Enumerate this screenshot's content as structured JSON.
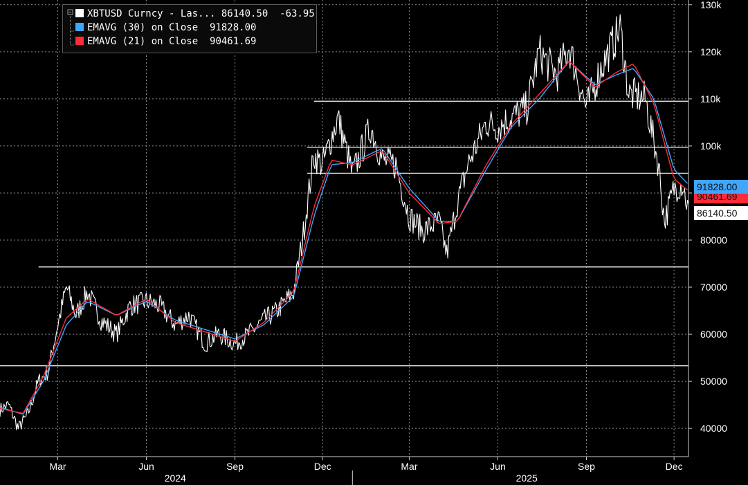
{
  "legend": {
    "items": [
      {
        "label": "XBTUSD Curncy - Las...",
        "value": "86140.50",
        "change": "-63.95",
        "color": "#ffffff"
      },
      {
        "label": "EMAVG (30)  on Close",
        "value": "91828.00",
        "color": "#3ea6ff"
      },
      {
        "label": "EMAVG (21)  on Close",
        "value": "90461.69",
        "color": "#ff2a3a"
      }
    ]
  },
  "tags": {
    "ema30": "91828.00",
    "ema21": "90461.69",
    "last": "86140.50"
  },
  "chart_data": {
    "type": "line",
    "title": "",
    "xlabel": "",
    "ylabel": "",
    "ylim": [
      34000,
      131000
    ],
    "y_ticks": [
      {
        "value": 40000,
        "label": "40000"
      },
      {
        "value": 50000,
        "label": "50000"
      },
      {
        "value": 60000,
        "label": "60000"
      },
      {
        "value": 70000,
        "label": "70000"
      },
      {
        "value": 80000,
        "label": "80000"
      },
      {
        "value": 90000,
        "label": "90000"
      },
      {
        "value": 100000,
        "label": "100k"
      },
      {
        "value": 110000,
        "label": "110k"
      },
      {
        "value": 120000,
        "label": "120k"
      },
      {
        "value": 130000,
        "label": "130k"
      }
    ],
    "x_range": [
      "2024-01-01",
      "2025-12-16"
    ],
    "x_ticks": [
      {
        "date": "2024-03-01",
        "label": "Mar"
      },
      {
        "date": "2024-06-01",
        "label": "Jun"
      },
      {
        "date": "2024-09-01",
        "label": "Sep"
      },
      {
        "date": "2024-12-01",
        "label": "Dec"
      },
      {
        "date": "2025-03-01",
        "label": "Mar"
      },
      {
        "date": "2025-06-01",
        "label": "Jun"
      },
      {
        "date": "2025-09-01",
        "label": "Sep"
      },
      {
        "date": "2025-12-01",
        "label": "Dec"
      }
    ],
    "year_labels": [
      {
        "date": "2024-07-01",
        "label": "2024"
      },
      {
        "date": "2025-07-01",
        "label": "2025"
      }
    ],
    "year_separator": "2025-01-01",
    "grid": true,
    "legend_position": "top-left",
    "horizontal_levels": [
      {
        "value": 53300,
        "from": "2024-01-01"
      },
      {
        "value": 74300,
        "from": "2024-02-10"
      },
      {
        "value": 94200,
        "from": "2024-11-15"
      },
      {
        "value": 99700,
        "from": "2024-11-15"
      },
      {
        "value": 109500,
        "from": "2024-11-22"
      }
    ],
    "series": [
      {
        "name": "XBTUSD Curncy - Las...",
        "color": "#ffffff",
        "x": [
          "2024-01-01",
          "2024-01-10",
          "2024-01-20",
          "2024-01-30",
          "2024-02-10",
          "2024-02-20",
          "2024-03-01",
          "2024-03-10",
          "2024-03-20",
          "2024-04-01",
          "2024-04-15",
          "2024-05-01",
          "2024-05-15",
          "2024-06-01",
          "2024-06-15",
          "2024-07-01",
          "2024-07-15",
          "2024-08-01",
          "2024-08-15",
          "2024-09-01",
          "2024-09-15",
          "2024-10-01",
          "2024-10-15",
          "2024-11-01",
          "2024-11-10",
          "2024-11-22",
          "2024-12-01",
          "2024-12-17",
          "2025-01-01",
          "2025-01-20",
          "2025-02-01",
          "2025-02-15",
          "2025-03-01",
          "2025-03-15",
          "2025-04-01",
          "2025-04-09",
          "2025-04-20",
          "2025-05-01",
          "2025-05-20",
          "2025-06-01",
          "2025-06-15",
          "2025-07-01",
          "2025-07-14",
          "2025-08-01",
          "2025-08-14",
          "2025-09-01",
          "2025-09-15",
          "2025-10-06",
          "2025-10-15",
          "2025-11-01",
          "2025-11-15",
          "2025-11-21",
          "2025-12-01",
          "2025-12-10",
          "2025-12-16"
        ],
        "values": [
          44000,
          45000,
          40000,
          43000,
          50000,
          52000,
          62000,
          70000,
          64000,
          69000,
          63000,
          60000,
          66000,
          67000,
          66000,
          62000,
          64000,
          58000,
          60000,
          58000,
          60000,
          63000,
          65000,
          69000,
          80000,
          98000,
          96000,
          106000,
          94000,
          104000,
          97000,
          96000,
          85000,
          82000,
          84000,
          77000,
          88000,
          96000,
          105000,
          104000,
          106000,
          108000,
          120000,
          115000,
          121000,
          108000,
          116000,
          125000,
          111000,
          110000,
          96000,
          84000,
          91000,
          92000,
          86140
        ]
      },
      {
        "name": "EMAVG (30)  on Close",
        "color": "#3ea6ff",
        "x": [
          "2024-01-01",
          "2024-01-25",
          "2024-02-15",
          "2024-03-10",
          "2024-04-01",
          "2024-05-01",
          "2024-06-01",
          "2024-07-01",
          "2024-08-01",
          "2024-09-01",
          "2024-10-01",
          "2024-11-01",
          "2024-11-22",
          "2024-12-10",
          "2025-01-01",
          "2025-02-01",
          "2025-03-01",
          "2025-04-01",
          "2025-04-20",
          "2025-05-20",
          "2025-06-15",
          "2025-07-14",
          "2025-08-14",
          "2025-09-10",
          "2025-10-01",
          "2025-10-20",
          "2025-11-10",
          "2025-12-01",
          "2025-12-16"
        ],
        "values": [
          44500,
          43000,
          50000,
          62000,
          67000,
          64000,
          67000,
          63000,
          61000,
          59000,
          62000,
          68000,
          85000,
          96000,
          96500,
          99500,
          91000,
          84000,
          84000,
          95000,
          104000,
          110000,
          118000,
          113000,
          115000,
          116500,
          110000,
          95000,
          91828
        ]
      },
      {
        "name": "EMAVG (21)  on Close",
        "color": "#ff2a3a",
        "x": [
          "2024-01-01",
          "2024-01-25",
          "2024-02-15",
          "2024-03-10",
          "2024-04-01",
          "2024-05-01",
          "2024-06-01",
          "2024-07-01",
          "2024-08-01",
          "2024-09-01",
          "2024-10-01",
          "2024-11-01",
          "2024-11-22",
          "2024-12-10",
          "2025-01-01",
          "2025-02-01",
          "2025-03-01",
          "2025-04-01",
          "2025-04-20",
          "2025-05-20",
          "2025-06-15",
          "2025-07-14",
          "2025-08-14",
          "2025-09-10",
          "2025-10-01",
          "2025-10-20",
          "2025-11-10",
          "2025-12-01",
          "2025-12-16"
        ],
        "values": [
          44200,
          43200,
          51000,
          63500,
          67500,
          64000,
          67500,
          62500,
          60500,
          58500,
          62500,
          69000,
          87000,
          97000,
          96000,
          99000,
          90000,
          83500,
          84000,
          96000,
          104500,
          111000,
          118000,
          112500,
          115500,
          117500,
          109000,
          93000,
          90462
        ]
      }
    ]
  }
}
